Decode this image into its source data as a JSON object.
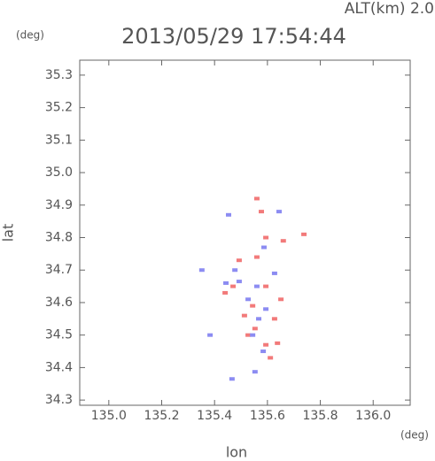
{
  "chart_data": {
    "type": "scatter",
    "title": "2013/05/29 17:54:44",
    "subtitle": "ALT(km) 2.0",
    "x_label": "lon",
    "y_label": "lat",
    "x_unit": "(deg)",
    "y_unit": "(deg)",
    "xlim": [
      134.89,
      136.14
    ],
    "ylim": [
      34.284,
      35.346
    ],
    "xticks": [
      {
        "value": 135.0,
        "label": "135.0"
      },
      135.2,
      135.4,
      135.6,
      135.8,
      {
        "value": 136.0,
        "label": "136.0"
      }
    ],
    "yticks": [
      34.3,
      34.4,
      34.5,
      34.6,
      34.7,
      34.8,
      34.9,
      {
        "value": 35.0,
        "label": "35.0"
      },
      35.1,
      35.2,
      35.3
    ],
    "series": [
      {
        "color": "#f27a7a",
        "x": [
          135.56,
          135.738,
          135.594,
          135.493,
          135.47,
          135.594,
          135.544,
          135.627,
          135.527,
          135.594,
          135.638,
          135.611,
          135.56,
          135.44,
          135.66,
          135.577,
          135.513,
          135.553,
          135.651
        ],
        "y": [
          34.92,
          34.81,
          34.8,
          34.73,
          34.65,
          34.65,
          34.59,
          34.55,
          34.5,
          34.47,
          34.475,
          34.43,
          34.74,
          34.63,
          34.79,
          34.88,
          34.56,
          34.52,
          34.61
        ]
      },
      {
        "color": "#8c8cf2",
        "x": [
          135.644,
          135.453,
          135.587,
          135.477,
          135.443,
          135.56,
          135.527,
          135.594,
          135.567,
          135.544,
          135.584,
          135.466,
          135.553,
          135.352,
          135.383,
          135.627,
          135.493
        ],
        "y": [
          34.88,
          34.87,
          34.77,
          34.7,
          34.66,
          34.65,
          34.61,
          34.58,
          34.55,
          34.5,
          34.45,
          34.365,
          34.387,
          34.7,
          34.5,
          34.69,
          34.665
        ]
      }
    ]
  }
}
